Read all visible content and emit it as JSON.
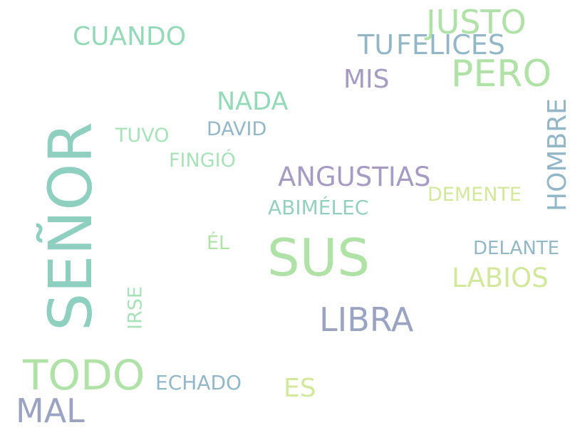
{
  "words": {
    "senor": {
      "text": "SEÑOR",
      "color": "#8fcfc0"
    },
    "sus": {
      "text": "SUS",
      "color": "#b0e2a8"
    },
    "todo": {
      "text": "TODO",
      "color": "#b0e2a8"
    },
    "libra": {
      "text": "LIBRA",
      "color": "#9aa3c2"
    },
    "pero": {
      "text": "PERO",
      "color": "#b0e2a8"
    },
    "justo": {
      "text": "JUSTO",
      "color": "#b0e2a8"
    },
    "mal": {
      "text": "MAL",
      "color": "#9aa3c2"
    },
    "felices": {
      "text": "FELICES",
      "color": "#93b7c6"
    },
    "angustias": {
      "text": "ANGUSTIAS",
      "color": "#a69bc2"
    },
    "labios": {
      "text": "LABIOS",
      "color": "#d2e89a"
    },
    "hombre": {
      "text": "HOMBRE",
      "color": "#93b7c6"
    },
    "cuando": {
      "text": "CUANDO",
      "color": "#95dab8"
    },
    "nada": {
      "text": "NADA",
      "color": "#95dab8"
    },
    "mis": {
      "text": "MIS",
      "color": "#a69bc2"
    },
    "tu": {
      "text": "TU",
      "color": "#93b7c6"
    },
    "es": {
      "text": "ES",
      "color": "#d2e89a"
    },
    "echado": {
      "text": "ECHADO",
      "color": "#93b7c6"
    },
    "delante": {
      "text": "DELANTE",
      "color": "#93b7c6"
    },
    "abimelec": {
      "text": "ABIMÉLEC",
      "color": "#95cfc0"
    },
    "demente": {
      "text": "DEMENTE",
      "color": "#d2e89a"
    },
    "fingio": {
      "text": "FINGIÓ",
      "color": "#a8e2b8"
    },
    "david": {
      "text": "DAVID",
      "color": "#93b7c6"
    },
    "tuvo": {
      "text": "TUVO",
      "color": "#a8e2b8"
    },
    "el": {
      "text": "ÉL",
      "color": "#b0e2a8"
    },
    "irse": {
      "text": "IRSE",
      "color": "#a8e2b8"
    }
  }
}
